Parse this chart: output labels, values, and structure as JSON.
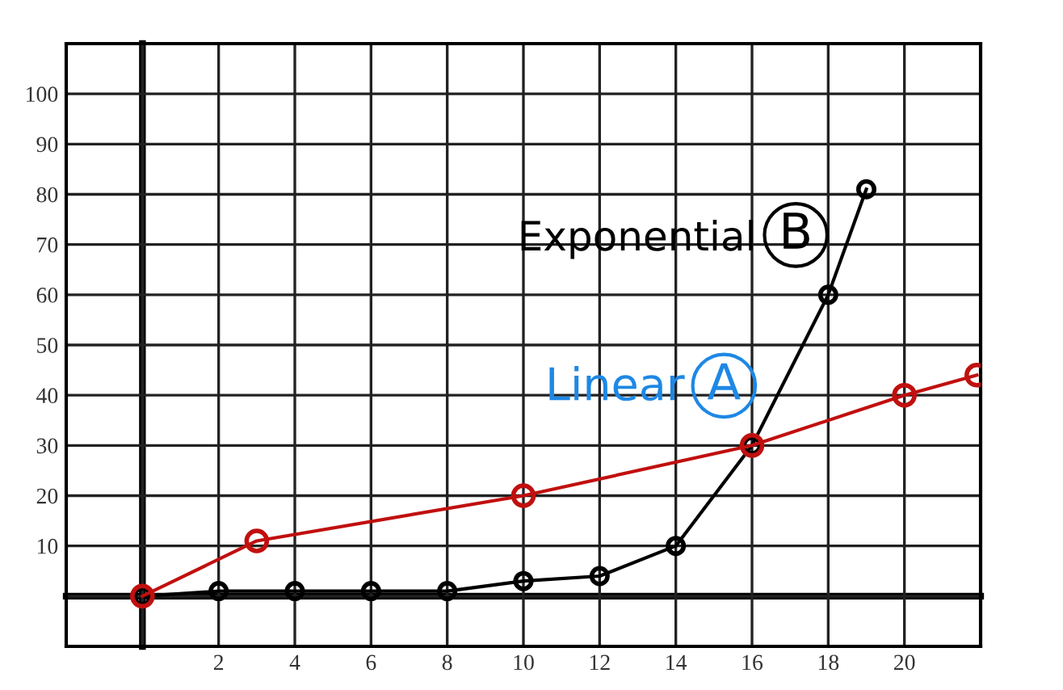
{
  "chart_data": {
    "type": "line",
    "xlim": [
      -2,
      22
    ],
    "ylim": [
      -10,
      110
    ],
    "xticks": [
      {
        "value": -2,
        "label": null
      },
      {
        "value": 0,
        "label": null
      },
      2,
      4,
      6,
      8,
      10,
      12,
      14,
      16,
      18,
      20,
      {
        "value": 22,
        "label": null
      }
    ],
    "yticks": [
      {
        "value": -10,
        "label": null
      },
      {
        "value": 0,
        "label": null
      },
      10,
      20,
      30,
      40,
      50,
      60,
      70,
      80,
      90,
      100,
      {
        "value": 110,
        "label": null
      }
    ],
    "grid": true,
    "marker": "circle",
    "line_style": "solid",
    "series": [
      {
        "name": "Linear",
        "color": "#c0100f",
        "x": [
          0,
          3,
          10,
          16,
          20,
          21.9
        ],
        "values": [
          0,
          11,
          20,
          30,
          40,
          44
        ]
      },
      {
        "name": "Exponential",
        "color": "#000000",
        "x": [
          0,
          2,
          4,
          6,
          8,
          10,
          12,
          14,
          16,
          18,
          19
        ],
        "values": [
          0,
          1,
          1,
          1,
          1,
          3,
          4,
          10,
          30,
          60,
          81
        ]
      }
    ],
    "annotations": [
      "A",
      "B"
    ]
  }
}
